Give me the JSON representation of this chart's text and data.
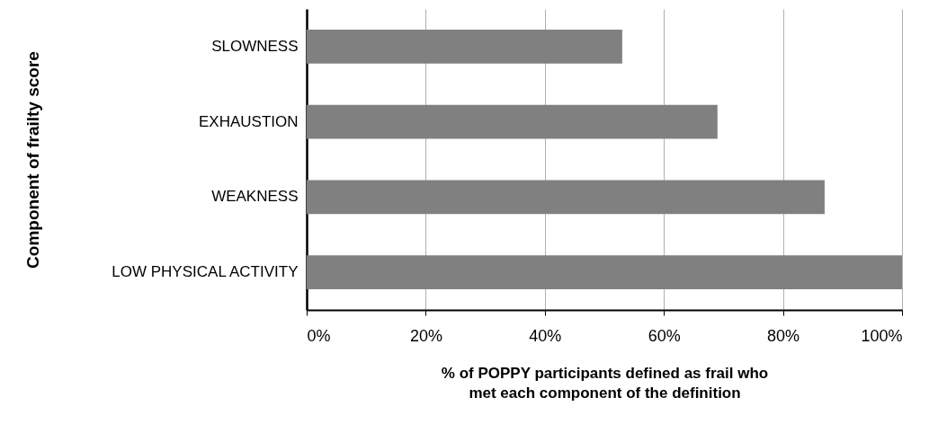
{
  "chart_data": {
    "type": "bar",
    "orientation": "horizontal",
    "xlabel": "% of POPPY participants defined as frail who\nmet each component of the definition",
    "ylabel": "Component of frailty score",
    "categories": [
      "SLOWNESS",
      "EXHAUSTION",
      "WEAKNESS",
      "LOW PHYSICAL ACTIVITY"
    ],
    "values": [
      53,
      69,
      87,
      100
    ],
    "color": "#808080",
    "xlim": [
      0,
      100
    ],
    "xticks": [
      {
        "value": 0,
        "label": "0%"
      },
      {
        "value": 20,
        "label": "20%"
      },
      {
        "value": 40,
        "label": "40%"
      },
      {
        "value": 60,
        "label": "60%"
      },
      {
        "value": 80,
        "label": "80%"
      },
      {
        "value": 100,
        "label": "100%"
      }
    ],
    "grid": "x"
  }
}
